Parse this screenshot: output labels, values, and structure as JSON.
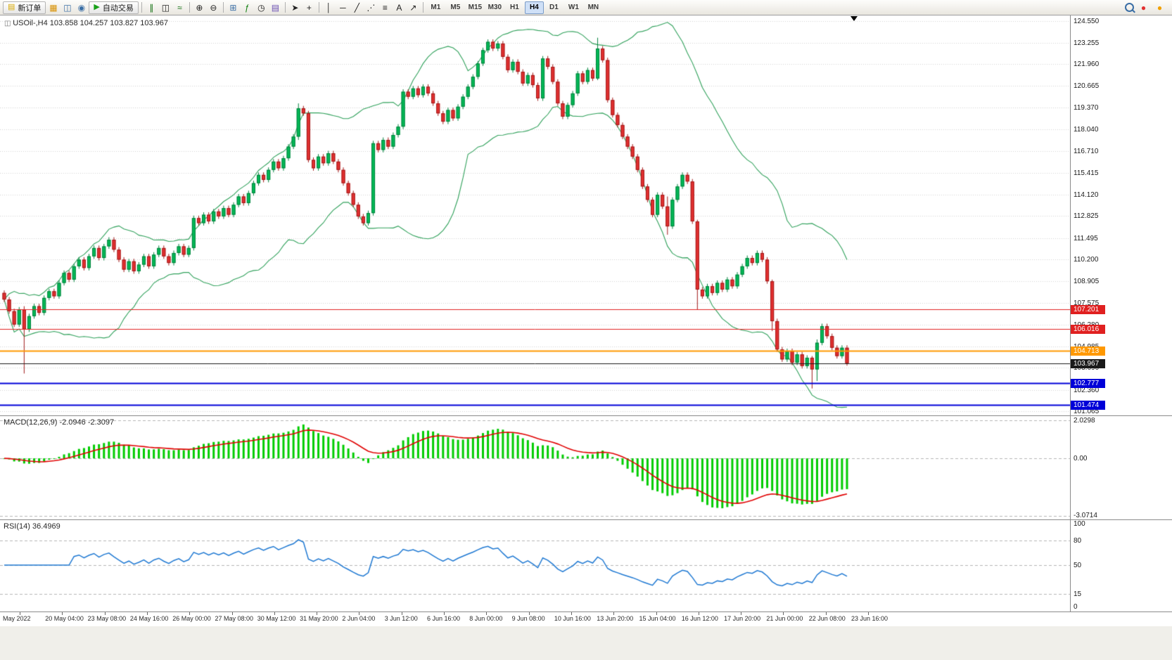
{
  "toolbar": {
    "items": [
      {
        "kind": "labelbtn",
        "name": "new-order-button",
        "icon_name": "new-order-icon",
        "label": "新订单",
        "icon_glyph": "▤",
        "icon_color": "#d8a800"
      },
      {
        "kind": "icon",
        "name": "chart-window-icon",
        "glyph": "▦",
        "color": "#d89000"
      },
      {
        "kind": "icon",
        "name": "profiles-icon",
        "glyph": "◫",
        "color": "#3a6ea5"
      },
      {
        "kind": "icon",
        "name": "navigator-icon",
        "glyph": "◉",
        "color": "#3a6ea5"
      },
      {
        "kind": "labelbtn",
        "name": "auto-trading-button",
        "icon_name": "auto-trading-icon",
        "label": "自动交易",
        "icon_glyph": "▶",
        "icon_color": "#18a018"
      },
      {
        "kind": "sep"
      },
      {
        "kind": "icon",
        "name": "bar-chart-icon",
        "glyph": "∥",
        "color": "#107010"
      },
      {
        "kind": "icon",
        "name": "candlestick-chart-icon",
        "glyph": "◫",
        "color": "#202020"
      },
      {
        "kind": "icon",
        "name": "line-chart-icon",
        "glyph": "≈",
        "color": "#107010"
      },
      {
        "kind": "sep"
      },
      {
        "kind": "icon",
        "name": "zoom-in-icon",
        "glyph": "⊕",
        "color": "#202020"
      },
      {
        "kind": "icon",
        "name": "zoom-out-icon",
        "glyph": "⊖",
        "color": "#202020"
      },
      {
        "kind": "sep"
      },
      {
        "kind": "icon",
        "name": "tile-windows-icon",
        "glyph": "⊞",
        "color": "#3a6ea5"
      },
      {
        "kind": "icon",
        "name": "indicators-icon",
        "glyph": "ƒ",
        "color": "#108010"
      },
      {
        "kind": "icon",
        "name": "periods-icon",
        "glyph": "◷",
        "color": "#202020"
      },
      {
        "kind": "icon",
        "name": "templates-icon",
        "glyph": "▤",
        "color": "#6a4fb3"
      },
      {
        "kind": "sep"
      },
      {
        "kind": "icon",
        "name": "cursor-icon",
        "glyph": "➤",
        "color": "#202020"
      },
      {
        "kind": "icon",
        "name": "crosshair-icon",
        "glyph": "+",
        "color": "#202020"
      },
      {
        "kind": "sep"
      },
      {
        "kind": "icon",
        "name": "vertical-line-icon",
        "glyph": "│",
        "color": "#202020"
      },
      {
        "kind": "icon",
        "name": "horizontal-line-icon",
        "glyph": "─",
        "color": "#202020"
      },
      {
        "kind": "icon",
        "name": "trendline-icon",
        "glyph": "╱",
        "color": "#202020"
      },
      {
        "kind": "icon",
        "name": "equidistant-channel-icon",
        "glyph": "⋰",
        "color": "#202020"
      },
      {
        "kind": "icon",
        "name": "fibonacci-icon",
        "glyph": "≡",
        "color": "#202020"
      },
      {
        "kind": "icon",
        "name": "text-icon",
        "glyph": "A",
        "color": "#202020"
      },
      {
        "kind": "icon",
        "name": "arrow-tools-icon",
        "glyph": "↗",
        "color": "#202020"
      },
      {
        "kind": "sep"
      },
      {
        "kind": "tf",
        "label": "M1"
      },
      {
        "kind": "tf",
        "label": "M5"
      },
      {
        "kind": "tf",
        "label": "M15"
      },
      {
        "kind": "tf",
        "label": "M30"
      },
      {
        "kind": "tf",
        "label": "H1"
      },
      {
        "kind": "tf",
        "label": "H4",
        "active": true
      },
      {
        "kind": "tf",
        "label": "D1"
      },
      {
        "kind": "tf",
        "label": "W1"
      },
      {
        "kind": "tf",
        "label": "MN"
      }
    ],
    "right_items": [
      {
        "kind": "magnifier",
        "name": "search-icon",
        "color": "#3a6ea5"
      },
      {
        "kind": "icon",
        "name": "notification-red-icon",
        "glyph": "●",
        "color": "#e23030"
      },
      {
        "kind": "icon",
        "name": "notification-orange-icon",
        "glyph": "●",
        "color": "#f0a000"
      }
    ]
  },
  "chart": {
    "symbol_line": "USOil-,H4   103.858 104.257 103.827 103.967",
    "price_axis_labels": [
      "124.550",
      "123.255",
      "121.960",
      "120.665",
      "119.370",
      "118.040",
      "116.710",
      "115.415",
      "114.120",
      "112.825",
      "111.495",
      "110.200",
      "108.905",
      "107.575",
      "106.280",
      "104.985",
      "103.690",
      "102.360",
      "101.065"
    ],
    "levels": [
      {
        "label": "107.201",
        "value": 107.201,
        "color": "#e02020",
        "width": 1
      },
      {
        "label": "106.016",
        "value": 106.016,
        "color": "#e02020",
        "width": 1
      },
      {
        "label": "104.713",
        "value": 104.713,
        "color": "#ff9800",
        "width": 2
      },
      {
        "label": "103.967",
        "value": 103.967,
        "color": "#1a1a1a",
        "width": 1
      },
      {
        "label": "102.777",
        "value": 102.777,
        "color": "#0000d8",
        "width": 2
      },
      {
        "label": "101.474",
        "value": 101.474,
        "color": "#0000d8",
        "width": 2
      }
    ]
  },
  "macd": {
    "label": "MACD(12,26,9) -2.0946 -2.3097",
    "axis_labels": [
      "2.0298",
      "0.00",
      "-3.0714"
    ],
    "range": [
      -3.0714,
      2.0298
    ]
  },
  "rsi": {
    "label": "RSI(14) 36.4969",
    "axis_labels": [
      "100",
      "80",
      "50",
      "15",
      "0"
    ],
    "level_lines": [
      80,
      50,
      15
    ]
  },
  "time_axis": {
    "labels": [
      "May 2022",
      "20 May 04:00",
      "23 May 08:00",
      "24 May 16:00",
      "26 May 00:00",
      "27 May 08:00",
      "30 May 12:00",
      "31 May 20:00",
      "2 Jun 04:00",
      "3 Jun 12:00",
      "6 Jun 16:00",
      "8 Jun 00:00",
      "9 Jun 08:00",
      "10 Jun 16:00",
      "13 Jun 20:00",
      "15 Jun 04:00",
      "16 Jun 12:00",
      "17 Jun 20:00",
      "21 Jun 00:00",
      "22 Jun 08:00",
      "23 Jun 16:00"
    ]
  },
  "chart_data": {
    "type": "candlestick",
    "symbol": "USOil-",
    "timeframe": "H4",
    "ohlc_current": {
      "open": 103.858,
      "high": 104.257,
      "low": 103.827,
      "close": 103.967
    },
    "ylim": [
      101.0,
      124.55
    ],
    "first_open": 108.2,
    "closes": [
      107.8,
      107.1,
      106.3,
      107.2,
      106.0,
      106.8,
      107.4,
      107.0,
      107.9,
      108.3,
      108.0,
      108.8,
      109.4,
      109.0,
      109.8,
      110.2,
      109.7,
      110.4,
      110.9,
      110.3,
      111.0,
      111.4,
      110.8,
      110.2,
      109.6,
      110.1,
      109.5,
      109.9,
      110.4,
      109.8,
      110.5,
      110.9,
      110.4,
      110.0,
      110.6,
      111.0,
      110.5,
      110.9,
      112.7,
      112.4,
      112.9,
      112.5,
      113.1,
      112.8,
      113.3,
      112.9,
      113.5,
      114.0,
      113.6,
      114.2,
      114.8,
      115.3,
      115.0,
      115.6,
      116.1,
      115.7,
      116.3,
      117.0,
      117.6,
      119.3,
      119.0,
      116.2,
      115.7,
      116.4,
      116.0,
      116.6,
      116.1,
      115.6,
      114.8,
      114.2,
      113.5,
      112.8,
      112.4,
      113.0,
      117.2,
      116.8,
      117.4,
      117.0,
      117.7,
      118.2,
      120.3,
      120.0,
      120.5,
      120.1,
      120.6,
      120.2,
      119.6,
      119.0,
      118.5,
      119.2,
      118.7,
      119.4,
      120.0,
      120.6,
      121.2,
      122.0,
      122.8,
      123.3,
      122.9,
      123.2,
      122.4,
      121.6,
      122.1,
      121.5,
      120.8,
      121.3,
      120.7,
      119.9,
      122.3,
      121.8,
      120.9,
      119.6,
      118.8,
      119.5,
      120.2,
      121.4,
      120.9,
      121.6,
      121.1,
      122.9,
      122.2,
      119.8,
      118.9,
      118.3,
      117.6,
      117.0,
      116.4,
      115.6,
      114.6,
      113.8,
      112.9,
      114.1,
      113.4,
      112.2,
      113.8,
      114.6,
      115.3,
      114.9,
      112.5,
      108.4,
      108.0,
      108.6,
      108.2,
      108.8,
      108.4,
      109.0,
      108.6,
      109.3,
      109.8,
      110.3,
      110.0,
      110.6,
      110.2,
      108.9,
      106.5,
      104.8,
      104.2,
      104.7,
      104.0,
      104.5,
      103.8,
      104.3,
      103.6,
      105.2,
      106.2,
      105.6,
      104.9,
      104.4,
      104.9,
      103.97
    ],
    "wick_overrides": {
      "4": [
        107.4,
        103.35
      ],
      "59": [
        119.6,
        117.4
      ],
      "119": [
        123.55,
        121.0
      ],
      "133": [
        114.0,
        111.7
      ],
      "139": [
        112.6,
        107.2
      ],
      "154": [
        109.0,
        105.9
      ],
      "162": [
        104.4,
        102.45
      ],
      "163": [
        105.4,
        102.9
      ]
    },
    "indicators": {
      "bollinger_period": 20,
      "bollinger_dev": 2,
      "macd": [
        12,
        26,
        9
      ],
      "rsi_period": 14
    },
    "colors": {
      "up": "#00b956",
      "up_stroke": "#00813c",
      "down": "#e33030",
      "down_stroke": "#a01818",
      "band": "#2fa05a",
      "macd_hist": "#00cc00",
      "macd_signal": "#e00000",
      "rsi_line": "#1e78d2",
      "grid": "#d2d2d2"
    }
  }
}
